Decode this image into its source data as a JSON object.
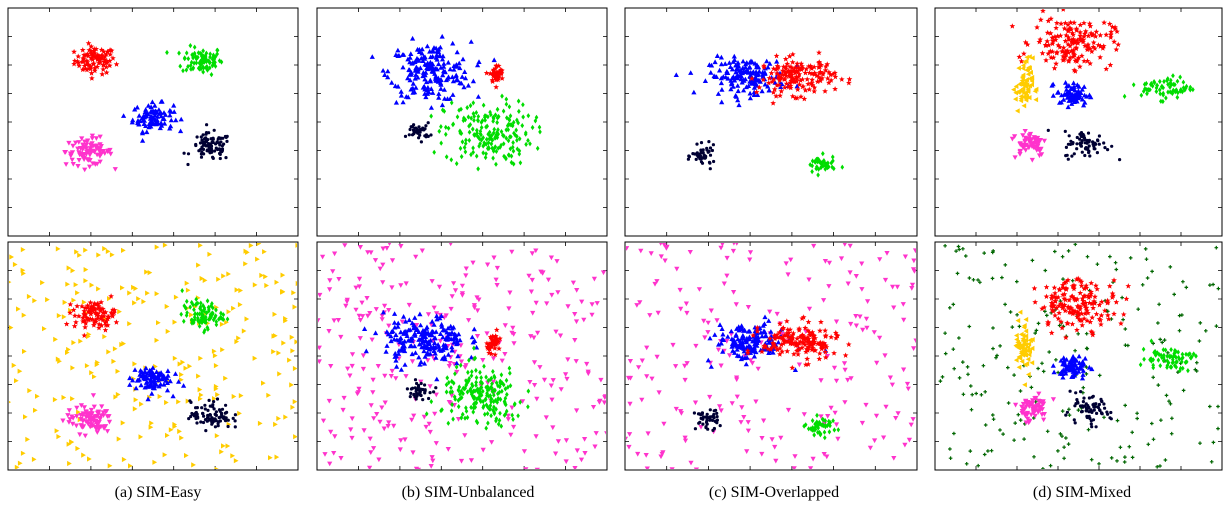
{
  "figure": {
    "captions": [
      "(a) SIM-Easy",
      "(b) SIM-Unbalanced",
      "(c) SIM-Overlapped",
      "(d) SIM-Mixed"
    ]
  },
  "chart_data": [
    {
      "type": "scatter",
      "panel": "a-top",
      "title": "",
      "xlabel": "",
      "ylabel": "",
      "xlim": [
        0,
        1
      ],
      "ylim": [
        0,
        1
      ],
      "grid": false,
      "legend": "none",
      "series": [
        {
          "color": "#ff0000",
          "marker": "star",
          "cx": 0.3,
          "cy": 0.77,
          "sx": 0.035,
          "sy": 0.03,
          "n": 90
        },
        {
          "color": "#00dd00",
          "marker": "diamond",
          "cx": 0.67,
          "cy": 0.77,
          "sx": 0.035,
          "sy": 0.03,
          "n": 90
        },
        {
          "color": "#0000ff",
          "marker": "triangle-up",
          "cx": 0.5,
          "cy": 0.52,
          "sx": 0.035,
          "sy": 0.03,
          "n": 90
        },
        {
          "color": "#ff33cc",
          "marker": "triangle-down",
          "cx": 0.28,
          "cy": 0.37,
          "sx": 0.04,
          "sy": 0.03,
          "n": 90
        },
        {
          "color": "#000033",
          "marker": "dot",
          "cx": 0.7,
          "cy": 0.39,
          "sx": 0.035,
          "sy": 0.03,
          "n": 90
        }
      ]
    },
    {
      "type": "scatter",
      "panel": "b-top",
      "title": "",
      "xlabel": "",
      "ylabel": "",
      "xlim": [
        0,
        1
      ],
      "ylim": [
        0,
        1
      ],
      "grid": false,
      "legend": "none",
      "series": [
        {
          "color": "#0000ff",
          "marker": "triangle-up",
          "cx": 0.39,
          "cy": 0.72,
          "sx": 0.07,
          "sy": 0.065,
          "n": 200
        },
        {
          "color": "#ff0000",
          "marker": "star",
          "cx": 0.62,
          "cy": 0.71,
          "sx": 0.012,
          "sy": 0.02,
          "n": 40
        },
        {
          "color": "#00dd00",
          "marker": "diamond",
          "cx": 0.59,
          "cy": 0.45,
          "sx": 0.075,
          "sy": 0.07,
          "n": 200
        },
        {
          "color": "#000033",
          "marker": "dot",
          "cx": 0.35,
          "cy": 0.46,
          "sx": 0.02,
          "sy": 0.018,
          "n": 40
        }
      ]
    },
    {
      "type": "scatter",
      "panel": "c-top",
      "title": "",
      "xlabel": "",
      "ylabel": "",
      "xlim": [
        0,
        1
      ],
      "ylim": [
        0,
        1
      ],
      "grid": false,
      "legend": "none",
      "series": [
        {
          "color": "#0000ff",
          "marker": "triangle-up",
          "cx": 0.42,
          "cy": 0.7,
          "sx": 0.065,
          "sy": 0.04,
          "n": 160
        },
        {
          "color": "#ff0000",
          "marker": "star",
          "cx": 0.59,
          "cy": 0.7,
          "sx": 0.065,
          "sy": 0.04,
          "n": 160
        },
        {
          "color": "#000033",
          "marker": "dot",
          "cx": 0.27,
          "cy": 0.35,
          "sx": 0.02,
          "sy": 0.022,
          "n": 45
        },
        {
          "color": "#00dd00",
          "marker": "diamond",
          "cx": 0.67,
          "cy": 0.31,
          "sx": 0.025,
          "sy": 0.02,
          "n": 45
        }
      ]
    },
    {
      "type": "scatter",
      "panel": "d-top",
      "title": "",
      "xlabel": "",
      "ylabel": "",
      "xlim": [
        0,
        1
      ],
      "ylim": [
        0,
        1
      ],
      "grid": false,
      "legend": "none",
      "series": [
        {
          "color": "#ff0000",
          "marker": "star",
          "cx": 0.48,
          "cy": 0.85,
          "sx": 0.07,
          "sy": 0.055,
          "n": 160
        },
        {
          "color": "#ffcc00",
          "marker": "triangle-left",
          "cx": 0.31,
          "cy": 0.66,
          "sx": 0.015,
          "sy": 0.06,
          "n": 60
        },
        {
          "color": "#0000ff",
          "marker": "triangle-up",
          "cx": 0.48,
          "cy": 0.62,
          "sx": 0.028,
          "sy": 0.025,
          "n": 70
        },
        {
          "color": "#00dd00",
          "marker": "diamond",
          "cx": 0.81,
          "cy": 0.65,
          "sx": 0.045,
          "sy": 0.025,
          "n": 70
        },
        {
          "color": "#ff33cc",
          "marker": "triangle-down",
          "cx": 0.33,
          "cy": 0.41,
          "sx": 0.03,
          "sy": 0.03,
          "n": 60
        },
        {
          "color": "#000033",
          "marker": "dot",
          "cx": 0.53,
          "cy": 0.4,
          "sx": 0.04,
          "sy": 0.03,
          "n": 70
        }
      ]
    },
    {
      "type": "scatter",
      "panel": "a-bottom",
      "title": "",
      "xlabel": "",
      "ylabel": "",
      "xlim": [
        0,
        1
      ],
      "ylim": [
        0,
        1
      ],
      "grid": false,
      "legend": "none",
      "series": [
        {
          "color": "#ffcc00",
          "marker": "triangle-right",
          "noise": true,
          "n": 260
        },
        {
          "color": "#ff0000",
          "marker": "star",
          "cx": 0.3,
          "cy": 0.68,
          "sx": 0.035,
          "sy": 0.03,
          "n": 90
        },
        {
          "color": "#00dd00",
          "marker": "diamond",
          "cx": 0.67,
          "cy": 0.68,
          "sx": 0.035,
          "sy": 0.03,
          "n": 90
        },
        {
          "color": "#0000ff",
          "marker": "triangle-up",
          "cx": 0.49,
          "cy": 0.4,
          "sx": 0.035,
          "sy": 0.03,
          "n": 90
        },
        {
          "color": "#ff33cc",
          "marker": "triangle-down",
          "cx": 0.28,
          "cy": 0.22,
          "sx": 0.04,
          "sy": 0.03,
          "n": 90
        },
        {
          "color": "#000033",
          "marker": "dot",
          "cx": 0.7,
          "cy": 0.24,
          "sx": 0.035,
          "sy": 0.03,
          "n": 90
        }
      ]
    },
    {
      "type": "scatter",
      "panel": "b-bottom",
      "title": "",
      "xlabel": "",
      "ylabel": "",
      "xlim": [
        0,
        1
      ],
      "ylim": [
        0,
        1
      ],
      "grid": false,
      "legend": "none",
      "series": [
        {
          "color": "#ff33cc",
          "marker": "triangle-down",
          "noise": true,
          "n": 300
        },
        {
          "color": "#0000ff",
          "marker": "triangle-up",
          "cx": 0.37,
          "cy": 0.57,
          "sx": 0.07,
          "sy": 0.055,
          "n": 200
        },
        {
          "color": "#ff0000",
          "marker": "star",
          "cx": 0.61,
          "cy": 0.56,
          "sx": 0.012,
          "sy": 0.02,
          "n": 40
        },
        {
          "color": "#00dd00",
          "marker": "diamond",
          "cx": 0.57,
          "cy": 0.32,
          "sx": 0.07,
          "sy": 0.065,
          "n": 200
        },
        {
          "color": "#000033",
          "marker": "dot",
          "cx": 0.35,
          "cy": 0.35,
          "sx": 0.02,
          "sy": 0.018,
          "n": 40
        }
      ]
    },
    {
      "type": "scatter",
      "panel": "c-bottom",
      "title": "",
      "xlabel": "",
      "ylabel": "",
      "xlim": [
        0,
        1
      ],
      "ylim": [
        0,
        1
      ],
      "grid": false,
      "legend": "none",
      "series": [
        {
          "color": "#ff33cc",
          "marker": "triangle-down",
          "noise": true,
          "n": 220
        },
        {
          "color": "#0000ff",
          "marker": "triangle-up",
          "cx": 0.43,
          "cy": 0.56,
          "sx": 0.06,
          "sy": 0.04,
          "n": 160
        },
        {
          "color": "#ff0000",
          "marker": "star",
          "cx": 0.6,
          "cy": 0.56,
          "sx": 0.065,
          "sy": 0.04,
          "n": 160
        },
        {
          "color": "#000033",
          "marker": "dot",
          "cx": 0.28,
          "cy": 0.22,
          "sx": 0.02,
          "sy": 0.022,
          "n": 45
        },
        {
          "color": "#00dd00",
          "marker": "diamond",
          "cx": 0.67,
          "cy": 0.19,
          "sx": 0.025,
          "sy": 0.02,
          "n": 45
        }
      ]
    },
    {
      "type": "scatter",
      "panel": "d-bottom",
      "title": "",
      "xlabel": "",
      "ylabel": "",
      "xlim": [
        0,
        1
      ],
      "ylim": [
        0,
        1
      ],
      "grid": false,
      "legend": "none",
      "series": [
        {
          "color": "#006600",
          "marker": "cross",
          "noise": true,
          "n": 230
        },
        {
          "color": "#ff0000",
          "marker": "star",
          "cx": 0.5,
          "cy": 0.73,
          "sx": 0.07,
          "sy": 0.055,
          "n": 160
        },
        {
          "color": "#ffcc00",
          "marker": "triangle-left",
          "cx": 0.31,
          "cy": 0.55,
          "sx": 0.015,
          "sy": 0.06,
          "n": 60
        },
        {
          "color": "#0000ff",
          "marker": "triangle-up",
          "cx": 0.48,
          "cy": 0.45,
          "sx": 0.028,
          "sy": 0.025,
          "n": 70
        },
        {
          "color": "#00dd00",
          "marker": "diamond",
          "cx": 0.81,
          "cy": 0.49,
          "sx": 0.045,
          "sy": 0.025,
          "n": 70
        },
        {
          "color": "#ff33cc",
          "marker": "triangle-down",
          "cx": 0.34,
          "cy": 0.27,
          "sx": 0.03,
          "sy": 0.03,
          "n": 60
        },
        {
          "color": "#000033",
          "marker": "dot",
          "cx": 0.53,
          "cy": 0.26,
          "sx": 0.04,
          "sy": 0.03,
          "n": 70
        }
      ]
    }
  ]
}
